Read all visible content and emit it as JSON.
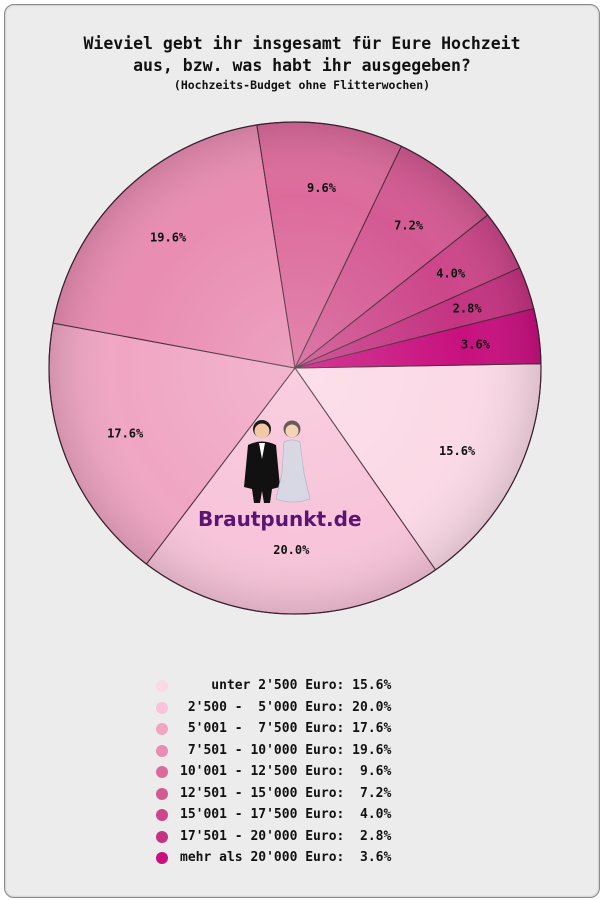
{
  "title_line1": "Wieviel gebt ihr insgesamt für Eure Hochzeit",
  "title_line2": "aus, bzw. was habt ihr ausgegeben?",
  "subtitle": "(Hochzeits-Budget ohne Flitterwochen)",
  "logo_text": "Brautpunkt.de",
  "chart_data": {
    "type": "pie",
    "title": "Wieviel gebt ihr insgesamt für Eure Hochzeit aus, bzw. was habt ihr ausgegeben?",
    "subtitle": "(Hochzeits-Budget ohne Flitterwochen)",
    "slices": [
      {
        "label": "unter 2'500 Euro",
        "value": 15.6,
        "display": "15.6%",
        "color": "#fbd9e6"
      },
      {
        "label": "2'500 -  5'000 Euro",
        "value": 20.0,
        "display": "20.0%",
        "color": "#f8c4d9"
      },
      {
        "label": "5'001 -  7'500 Euro",
        "value": 17.6,
        "display": "17.6%",
        "color": "#f0a6c3"
      },
      {
        "label": "7'501 - 10'000 Euro",
        "value": 19.6,
        "display": "19.6%",
        "color": "#e98db2"
      },
      {
        "label": "10'001 - 12'500 Euro",
        "value": 9.6,
        "display": "9.6%",
        "color": "#dc6b9c"
      },
      {
        "label": "12'501 - 15'000 Euro",
        "value": 7.2,
        "display": "7.2%",
        "color": "#d45a93"
      },
      {
        "label": "15'001 - 17'500 Euro",
        "value": 4.0,
        "display": "4.0%",
        "color": "#cc4689"
      },
      {
        "label": "17'501 - 20'000 Euro",
        "value": 2.8,
        "display": "2.8%",
        "color": "#c43381"
      },
      {
        "label": "mehr als 20'000 Euro",
        "value": 3.6,
        "display": "3.6%",
        "color": "#c8107e"
      }
    ],
    "legend_placement": "bottom",
    "legend": [
      "    unter 2'500 Euro: 15.6%",
      " 2'500 -  5'000 Euro: 20.0%",
      " 5'001 -  7'500 Euro: 17.6%",
      " 7'501 - 10'000 Euro: 19.6%",
      "10'001 - 12'500 Euro:  9.6%",
      "12'501 - 15'000 Euro:  7.2%",
      "15'001 - 17'500 Euro:  4.0%",
      "17'501 - 20'000 Euro:  2.8%",
      "mehr als 20'000 Euro:  3.6%"
    ]
  }
}
